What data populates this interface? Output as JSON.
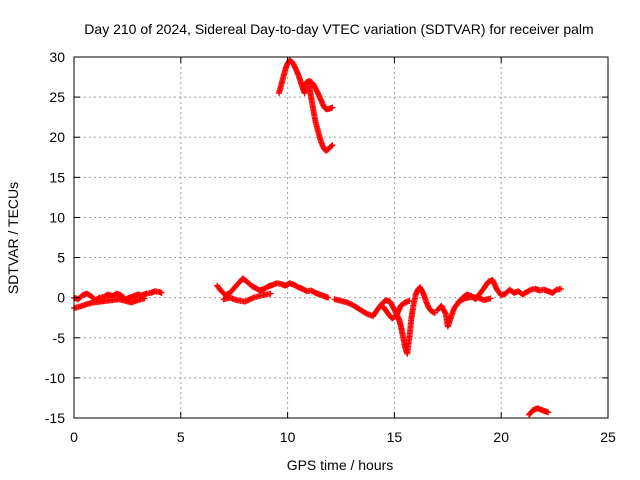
{
  "chart_data": {
    "type": "scatter",
    "title": "Day 210 of 2024, Sidereal Day-to-day VTEC variation (SDTVAR) for receiver palm",
    "xlabel": "GPS time / hours",
    "ylabel": "SDTVAR / TECUs",
    "xlim": [
      0,
      25
    ],
    "ylim": [
      -15,
      30
    ],
    "xticks": [
      0,
      5,
      10,
      15,
      20,
      25
    ],
    "yticks": [
      -15,
      -10,
      -5,
      0,
      5,
      10,
      15,
      20,
      25,
      30
    ],
    "grid": true,
    "marker": "+",
    "series": [
      {
        "name": "SDTVAR",
        "color": "#ff0000",
        "x": [
          0.0,
          0.2,
          0.4,
          0.6,
          0.8,
          1.0,
          1.2,
          1.4,
          1.6,
          1.8,
          2.0,
          2.2,
          2.4,
          2.6,
          2.8,
          3.0,
          3.2,
          3.4,
          3.6,
          3.8,
          4.0,
          4.1,
          0.0,
          0.3,
          0.6,
          0.9,
          1.2,
          1.5,
          1.8,
          2.1,
          2.4,
          2.7,
          3.0,
          3.3,
          6.7,
          6.9,
          7.1,
          7.3,
          7.5,
          7.7,
          7.9,
          8.1,
          8.3,
          8.5,
          8.7,
          8.9,
          9.1,
          9.3,
          9.5,
          9.7,
          9.9,
          10.1,
          10.3,
          10.5,
          10.7,
          10.9,
          11.1,
          11.3,
          11.5,
          11.7,
          11.9,
          7.0,
          7.3,
          7.6,
          8.0,
          8.4,
          8.8,
          9.2,
          9.6,
          9.7,
          9.8,
          9.9,
          10.0,
          10.1,
          10.2,
          10.3,
          10.4,
          10.5,
          10.6,
          10.7,
          10.8,
          10.8,
          10.9,
          11.0,
          11.1,
          11.2,
          11.3,
          11.4,
          11.5,
          11.6,
          11.7,
          11.8,
          11.9,
          12.0,
          12.1,
          11.0,
          11.1,
          11.2,
          11.3,
          11.4,
          11.5,
          11.6,
          11.7,
          11.8,
          11.9,
          12.0,
          12.1,
          12.2,
          12.5,
          12.8,
          13.1,
          13.4,
          13.7,
          14.0,
          14.2,
          14.4,
          14.6,
          14.8,
          15.0,
          15.2,
          15.3,
          15.4,
          15.5,
          15.6,
          15.7,
          15.8,
          15.9,
          16.0,
          16.1,
          16.2,
          16.3,
          16.4,
          16.5,
          16.6,
          16.7,
          16.8,
          16.9,
          14.5,
          14.7,
          14.9,
          15.1,
          15.3,
          15.5,
          15.7,
          17.0,
          17.2,
          17.4,
          17.5,
          17.8,
          18.0,
          18.2,
          18.4,
          18.6,
          18.8,
          19.0,
          19.2,
          19.4,
          19.6,
          19.8,
          20.0,
          20.2,
          20.4,
          20.6,
          20.8,
          21.0,
          21.2,
          21.4,
          21.6,
          21.8,
          22.0,
          22.2,
          22.4,
          22.6,
          22.8,
          18.0,
          18.3,
          18.6,
          18.9,
          19.2,
          19.5,
          21.3,
          21.4,
          21.5,
          21.6,
          21.7,
          21.8,
          21.9,
          22.0,
          22.1,
          22.2
        ],
        "y": [
          0.0,
          -0.2,
          0.3,
          0.5,
          0.2,
          -0.3,
          0.0,
          0.1,
          0.4,
          0.2,
          0.5,
          0.3,
          -0.2,
          0.0,
          0.2,
          0.4,
          0.3,
          0.5,
          0.6,
          0.8,
          0.7,
          0.6,
          -1.3,
          -1.1,
          -0.8,
          -0.6,
          -0.5,
          -0.4,
          -0.3,
          -0.2,
          -0.4,
          -0.6,
          -0.3,
          -0.1,
          1.5,
          0.8,
          0.3,
          0.6,
          1.2,
          1.8,
          2.4,
          2.0,
          1.5,
          1.2,
          0.9,
          1.1,
          1.4,
          1.6,
          1.8,
          1.7,
          1.5,
          1.8,
          1.6,
          1.3,
          1.1,
          0.8,
          0.9,
          0.6,
          0.4,
          0.2,
          0.0,
          -0.2,
          0.0,
          -0.3,
          -0.5,
          0.0,
          0.3,
          0.5,
          25.5,
          26.5,
          27.5,
          28.5,
          29.2,
          29.6,
          29.4,
          29.0,
          28.4,
          27.8,
          27.0,
          26.2,
          25.5,
          26.5,
          26.9,
          27.0,
          26.9,
          26.6,
          26.1,
          25.6,
          25.0,
          24.4,
          23.8,
          23.5,
          23.5,
          23.6,
          23.7,
          26.5,
          25.0,
          23.5,
          22.0,
          21.0,
          20.0,
          19.2,
          18.6,
          18.3,
          18.5,
          18.8,
          19.0,
          -0.2,
          -0.4,
          -0.6,
          -1.0,
          -1.5,
          -2.0,
          -2.3,
          -1.5,
          -0.8,
          -0.3,
          -0.5,
          -1.5,
          -2.6,
          -3.5,
          -4.8,
          -6.2,
          -7.0,
          -5.0,
          -2.5,
          -0.8,
          0.4,
          1.0,
          1.3,
          0.8,
          0.2,
          -0.6,
          -1.2,
          -1.6,
          -1.8,
          -1.9,
          -1.2,
          -2.0,
          -2.6,
          -2.2,
          -1.0,
          -0.6,
          -0.4,
          -1.6,
          -1.0,
          -2.0,
          -3.6,
          -1.3,
          -0.6,
          0.0,
          0.4,
          0.2,
          -0.2,
          0.5,
          1.2,
          2.0,
          2.2,
          1.0,
          0.3,
          0.5,
          1.0,
          0.6,
          0.8,
          0.4,
          0.7,
          1.0,
          1.1,
          0.9,
          1.0,
          0.8,
          0.6,
          1.0,
          1.1,
          -0.5,
          -0.1,
          0.1,
          0.0,
          -0.3,
          -0.1,
          -14.6,
          -14.3,
          -14.0,
          -13.9,
          -13.8,
          -13.9,
          -14.0,
          -14.1,
          -14.2,
          -14.3
        ]
      }
    ]
  }
}
